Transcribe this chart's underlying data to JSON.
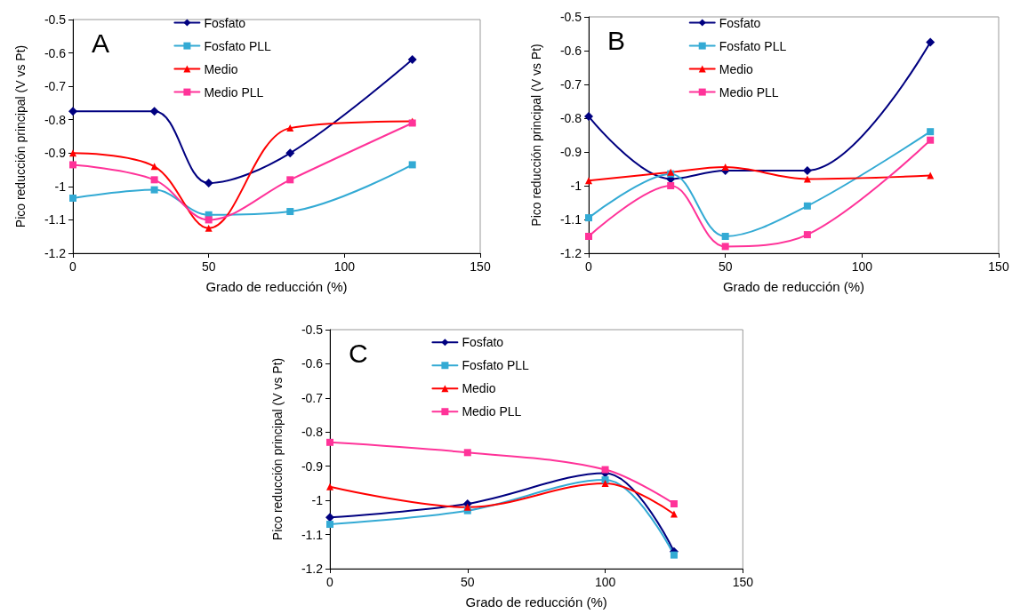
{
  "chart_data": [
    {
      "type": "line",
      "title": "A",
      "xlabel": "Grado de reducción (%)",
      "ylabel": "Pico reducción principal (V vs Pt)",
      "x": [
        0,
        30,
        50,
        80,
        125
      ],
      "xlim": [
        0,
        150
      ],
      "xticks": [
        0,
        50,
        100,
        150
      ],
      "ylim": [
        -1.2,
        -0.5
      ],
      "yticks": [
        -1.2,
        -1.1,
        -1,
        -0.9,
        -0.8,
        -0.7,
        -0.6,
        -0.5
      ],
      "grid": false,
      "legend": "top",
      "line_style": "solid",
      "series": [
        {
          "name": "Fosfato",
          "color": "#000080",
          "marker": "diamond",
          "values": [
            -0.775,
            -0.775,
            -0.99,
            -0.9,
            -0.62
          ]
        },
        {
          "name": "Fosfato PLL",
          "color": "#33aad4",
          "marker": "square",
          "values": [
            -1.035,
            -1.01,
            -1.085,
            -1.075,
            -0.935
          ]
        },
        {
          "name": "Medio",
          "color": "#ff0000",
          "marker": "triangle",
          "values": [
            -0.9,
            -0.94,
            -1.125,
            -0.825,
            -0.805
          ]
        },
        {
          "name": "Medio PLL",
          "color": "#ff3399",
          "marker": "square",
          "values": [
            -0.935,
            -0.98,
            -1.1,
            -0.98,
            -0.81
          ]
        }
      ]
    },
    {
      "type": "line",
      "title": "B",
      "xlabel": "Grado de reducción (%)",
      "ylabel": "Pico reducción principal (V vs Pt)",
      "x": [
        0,
        30,
        50,
        80,
        125
      ],
      "xlim": [
        0,
        150
      ],
      "xticks": [
        0,
        50,
        100,
        150
      ],
      "ylim": [
        -1.2,
        -0.5
      ],
      "yticks": [
        -1.2,
        -1.1,
        -1,
        -0.9,
        -0.8,
        -0.7,
        -0.6,
        -0.5
      ],
      "grid": false,
      "legend": "top",
      "line_style": "solid",
      "series": [
        {
          "name": "Fosfato",
          "color": "#000080",
          "marker": "diamond",
          "values": [
            -0.795,
            -0.98,
            -0.955,
            -0.955,
            -0.575
          ]
        },
        {
          "name": "Fosfato PLL",
          "color": "#33aad4",
          "marker": "square",
          "values": [
            -1.095,
            -0.965,
            -1.15,
            -1.06,
            -0.84
          ]
        },
        {
          "name": "Medio",
          "color": "#ff0000",
          "marker": "triangle",
          "values": [
            -0.985,
            -0.96,
            -0.945,
            -0.98,
            -0.97
          ]
        },
        {
          "name": "Medio PLL",
          "color": "#ff3399",
          "marker": "square",
          "values": [
            -1.15,
            -1,
            -1.18,
            -1.145,
            -0.865
          ]
        }
      ]
    },
    {
      "type": "line",
      "title": "C",
      "xlabel": "Grado de reducción (%)",
      "ylabel": "Pico reducción principal (V vs Pt)",
      "x": [
        0,
        50,
        100,
        125
      ],
      "xlim": [
        0,
        150
      ],
      "xticks": [
        0,
        50,
        100,
        150
      ],
      "ylim": [
        -1.2,
        -0.5
      ],
      "yticks": [
        -1.2,
        -1.1,
        -1,
        -0.9,
        -0.8,
        -0.7,
        -0.6,
        -0.5
      ],
      "grid": false,
      "legend": "top",
      "line_style": "solid",
      "series": [
        {
          "name": "Fosfato",
          "color": "#000080",
          "marker": "diamond",
          "values": [
            -1.05,
            -1.01,
            -0.92,
            -1.15
          ]
        },
        {
          "name": "Fosfato PLL",
          "color": "#33aad4",
          "marker": "square",
          "values": [
            -1.07,
            -1.03,
            -0.94,
            -1.16
          ]
        },
        {
          "name": "Medio",
          "color": "#ff0000",
          "marker": "triangle",
          "values": [
            -0.96,
            -1.02,
            -0.95,
            -1.04
          ]
        },
        {
          "name": "Medio PLL",
          "color": "#ff3399",
          "marker": "square",
          "values": [
            -0.83,
            -0.86,
            -0.91,
            -1.01
          ]
        }
      ]
    }
  ]
}
